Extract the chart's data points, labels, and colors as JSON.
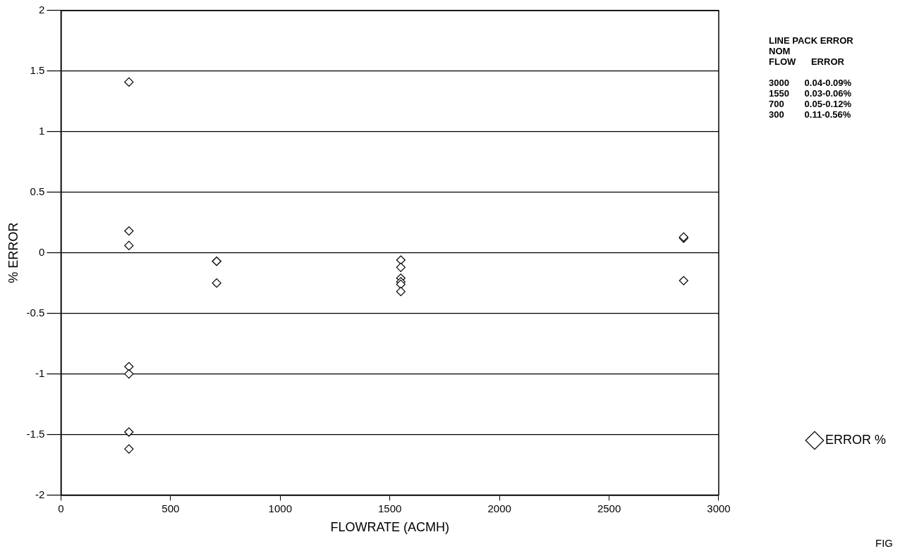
{
  "chart_data": {
    "type": "scatter",
    "xlabel": "FLOWRATE (ACMH)",
    "ylabel": "% ERROR",
    "xlim": [
      0,
      3000
    ],
    "xticks": [
      0,
      500,
      1000,
      1500,
      2000,
      2500,
      3000
    ],
    "ylim": [
      -2,
      2
    ],
    "yticks": [
      -2,
      -1.5,
      -1,
      -0.5,
      0,
      0.5,
      1,
      1.5,
      2
    ],
    "grid": "y",
    "legend": "right",
    "marker": "diamond",
    "series": [
      {
        "name": "ERROR %",
        "color": "#000000",
        "x": [
          310,
          310,
          310,
          310,
          310,
          310,
          310,
          710,
          710,
          710,
          1550,
          1550,
          1550,
          1550,
          1550,
          1550,
          2840,
          2840,
          2840
        ],
        "values": [
          1.41,
          0.18,
          0.06,
          -0.94,
          -1.0,
          -1.48,
          -1.62,
          -0.07,
          -0.07,
          -0.25,
          -0.06,
          -0.12,
          -0.21,
          -0.24,
          -0.26,
          -0.32,
          0.12,
          0.13,
          -0.23
        ]
      }
    ],
    "annotations": [
      "LINE PACK ERROR",
      "NOM",
      "FLOW      ERROR",
      "3000      0.04-0.09%",
      "1550      0.03-0.06%",
      "700        0.05-0.12%",
      "300        0.11-0.56%",
      "FIG"
    ]
  }
}
